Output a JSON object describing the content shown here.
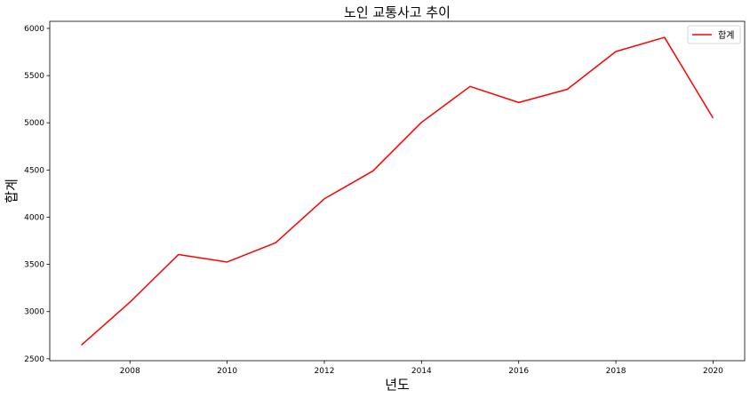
{
  "chart_data": {
    "type": "line",
    "title": "노인 교통사고 추이",
    "xlabel": "년도",
    "ylabel": "합계",
    "x": [
      2007,
      2008,
      2009,
      2010,
      2011,
      2012,
      2013,
      2014,
      2015,
      2016,
      2017,
      2018,
      2019,
      2020
    ],
    "series": [
      {
        "name": "합계",
        "color": "#ff0000",
        "values": [
          2645,
          3100,
          3605,
          3525,
          3730,
          4195,
          4490,
          5005,
          5385,
          5215,
          5355,
          5755,
          5905,
          5050
        ]
      }
    ],
    "xlim": [
      2006.35,
      2020.65
    ],
    "ylim": [
      2480,
      6075
    ],
    "xticks": [
      "2008",
      "2010",
      "2012",
      "2014",
      "2016",
      "2018",
      "2020"
    ],
    "yticks": [
      "2500",
      "3000",
      "3500",
      "4000",
      "4500",
      "5000",
      "5500",
      "6000"
    ],
    "legend_position": "top-right",
    "grid": false
  }
}
